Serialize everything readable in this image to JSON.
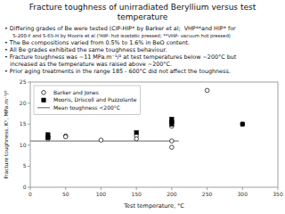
{
  "chart_data": {
    "type": "scatter",
    "title": "Fracture toughness of unirradiated Beryllium versus test\ntemperature",
    "annotations": [
      "• Differing grades of Be were tested (CIP-HIP* by Barker et al;  VHP**and HIP* for",
      "  S-200-F and S-65-H by Mooris et al (¹HIP- hot isostatic pressed; **VHP- vacuum hot pressed)",
      "• The Be compositions varied from 0.5% to 1.6% in BeO content.",
      "• All Be grades exhibited the same toughness behaviour.",
      "• Fracture toughness was ~11 MPa.m⁻¹/² at test temperatures below ~200°C but",
      "increased as the temperature was raised above ~200°C.",
      "• Prior aging treatments in the range 185 - 600°C did not affect the toughness."
    ],
    "xlabel": "Test temperature, °C",
    "ylabel": "Fracture toughness, Kᴵᶜ, MPa.m⁻¹/²",
    "xlim": [
      0,
      350
    ],
    "ylim": [
      0,
      25
    ],
    "xticks": [
      0,
      50,
      100,
      150,
      200,
      250,
      300,
      350
    ],
    "yticks": [
      0,
      5,
      10,
      15,
      20,
      25
    ],
    "grid": false,
    "legend": "upper left",
    "series": [
      {
        "name": "Barker and Jones",
        "type": "scatter",
        "marker": "open_circle",
        "color": "black",
        "x": [
          25,
          25,
          50,
          50,
          100,
          150,
          150,
          200,
          200,
          200,
          200,
          250,
          300
        ],
        "values": [
          12.0,
          11.5,
          12.2,
          12.0,
          11.2,
          12.2,
          11.5,
          11.0,
          9.5,
          14.5,
          15.5,
          23.0,
          15.0
        ]
      },
      {
        "name": "Mooris, Driscoll and Puzzolante",
        "type": "scatter",
        "marker": "square",
        "color": "black",
        "x": [
          25,
          25,
          150,
          200,
          200,
          200,
          300
        ],
        "values": [
          12.5,
          11.8,
          13.0,
          15.0,
          16.2,
          15.5,
          15.0
        ]
      },
      {
        "name": "Mean toughness <200°C",
        "type": "line",
        "line_style": "solid",
        "color": "gray",
        "x": [
          0,
          210
        ],
        "values": [
          11.0,
          11.0
        ]
      }
    ]
  }
}
